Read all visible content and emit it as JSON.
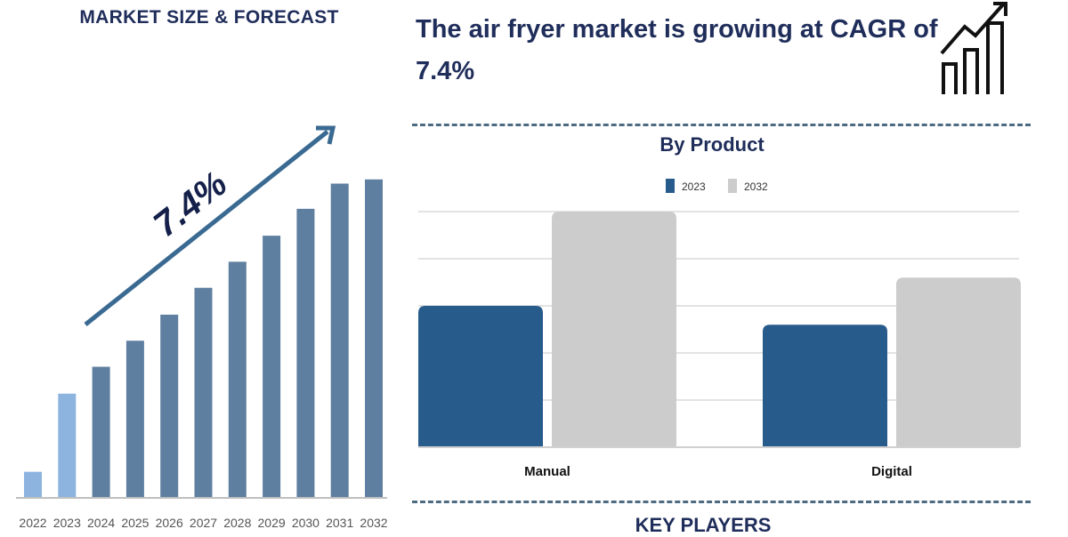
{
  "header": {
    "left_title": "MARKET SIZE & FORECAST",
    "headline": "The air fryer market is growing at CAGR of 7.4%",
    "icon": "growth-chart-arrow-icon"
  },
  "sections": {
    "by_product_title": "By Product",
    "key_players_title": "KEY PLAYERS"
  },
  "colors": {
    "navy": "#1f2d5a",
    "forecast_bar": "#5f7fa0",
    "history_bar": "#8db4df",
    "bar_2023": "#275b8c",
    "bar_2032": "#cccccc",
    "arrow": "#3a6a92"
  },
  "chart_data": [
    {
      "type": "bar",
      "title": "MARKET SIZE & FORECAST",
      "categories": [
        "2022",
        "2023",
        "2024",
        "2025",
        "2026",
        "2027",
        "2028",
        "2029",
        "2030",
        "2031",
        "2032"
      ],
      "values": [
        30,
        123,
        155,
        186,
        217,
        249,
        280,
        311,
        343,
        373,
        378
      ],
      "highlighted_history": [
        "2022",
        "2023"
      ],
      "annotation": "7.4%",
      "xlabel": "",
      "ylabel": "",
      "ylim": [
        0,
        400
      ],
      "grid": false
    },
    {
      "type": "bar",
      "title": "By Product",
      "categories": [
        "Manual",
        "Digital"
      ],
      "series": [
        {
          "name": "2023",
          "values": [
            3.0,
            2.6
          ]
        },
        {
          "name": "2032",
          "values": [
            5.0,
            3.6
          ]
        }
      ],
      "xlabel": "",
      "ylabel": "",
      "ylim": [
        0,
        5
      ],
      "grid": true,
      "legend": "top-center"
    }
  ]
}
